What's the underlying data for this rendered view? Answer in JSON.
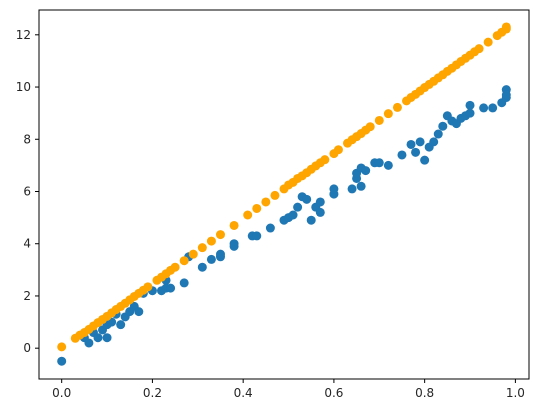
{
  "chart_data": {
    "type": "scatter",
    "title": "",
    "xlabel": "",
    "ylabel": "",
    "xlim": [
      -0.05,
      1.03
    ],
    "ylim": [
      -1.18,
      12.95
    ],
    "xticks": [
      0.0,
      0.2,
      0.4,
      0.6,
      0.8,
      1.0
    ],
    "xtick_labels": [
      "0.0",
      "0.2",
      "0.4",
      "0.6",
      "0.8",
      "1.0"
    ],
    "yticks": [
      0,
      2,
      4,
      6,
      8,
      10,
      12
    ],
    "ytick_labels": [
      "0",
      "2",
      "4",
      "6",
      "8",
      "10",
      "12"
    ],
    "grid": false,
    "legend": "none",
    "series": [
      {
        "color": "#1f77b4",
        "points": [
          [
            0.0,
            -0.5
          ],
          [
            0.05,
            0.4
          ],
          [
            0.06,
            0.2
          ],
          [
            0.07,
            0.6
          ],
          [
            0.08,
            0.4
          ],
          [
            0.09,
            0.7
          ],
          [
            0.1,
            0.4
          ],
          [
            0.1,
            0.9
          ],
          [
            0.11,
            1.0
          ],
          [
            0.12,
            1.3
          ],
          [
            0.13,
            0.9
          ],
          [
            0.14,
            1.2
          ],
          [
            0.15,
            1.4
          ],
          [
            0.16,
            1.6
          ],
          [
            0.17,
            1.4
          ],
          [
            0.18,
            2.1
          ],
          [
            0.2,
            2.2
          ],
          [
            0.22,
            2.2
          ],
          [
            0.23,
            2.3
          ],
          [
            0.24,
            2.3
          ],
          [
            0.23,
            2.6
          ],
          [
            0.27,
            2.5
          ],
          [
            0.28,
            3.5
          ],
          [
            0.31,
            3.1
          ],
          [
            0.33,
            3.4
          ],
          [
            0.35,
            3.5
          ],
          [
            0.35,
            3.6
          ],
          [
            0.38,
            4.0
          ],
          [
            0.38,
            3.9
          ],
          [
            0.42,
            4.3
          ],
          [
            0.43,
            4.3
          ],
          [
            0.46,
            4.6
          ],
          [
            0.49,
            4.9
          ],
          [
            0.5,
            5.0
          ],
          [
            0.51,
            5.1
          ],
          [
            0.52,
            5.4
          ],
          [
            0.53,
            5.8
          ],
          [
            0.54,
            5.7
          ],
          [
            0.55,
            4.9
          ],
          [
            0.56,
            5.4
          ],
          [
            0.57,
            5.6
          ],
          [
            0.57,
            5.2
          ],
          [
            0.6,
            5.9
          ],
          [
            0.6,
            6.1
          ],
          [
            0.64,
            6.1
          ],
          [
            0.65,
            6.5
          ],
          [
            0.65,
            6.7
          ],
          [
            0.66,
            6.9
          ],
          [
            0.66,
            6.2
          ],
          [
            0.67,
            6.8
          ],
          [
            0.69,
            7.1
          ],
          [
            0.7,
            7.1
          ],
          [
            0.72,
            7.0
          ],
          [
            0.75,
            7.4
          ],
          [
            0.77,
            7.8
          ],
          [
            0.78,
            7.5
          ],
          [
            0.79,
            7.9
          ],
          [
            0.8,
            7.2
          ],
          [
            0.81,
            7.7
          ],
          [
            0.82,
            7.9
          ],
          [
            0.83,
            8.2
          ],
          [
            0.84,
            8.5
          ],
          [
            0.85,
            8.9
          ],
          [
            0.86,
            8.7
          ],
          [
            0.87,
            8.6
          ],
          [
            0.88,
            8.8
          ],
          [
            0.89,
            8.9
          ],
          [
            0.9,
            9.0
          ],
          [
            0.9,
            9.3
          ],
          [
            0.93,
            9.2
          ],
          [
            0.95,
            9.2
          ],
          [
            0.97,
            9.4
          ],
          [
            0.98,
            9.6
          ],
          [
            0.98,
            9.9
          ],
          [
            0.98,
            9.7
          ]
        ]
      },
      {
        "color": "#ffa500",
        "points": [
          [
            0.0,
            0.05
          ],
          [
            0.03,
            0.38
          ],
          [
            0.04,
            0.5
          ],
          [
            0.05,
            0.6
          ],
          [
            0.06,
            0.72
          ],
          [
            0.07,
            0.85
          ],
          [
            0.08,
            0.98
          ],
          [
            0.09,
            1.1
          ],
          [
            0.1,
            1.22
          ],
          [
            0.11,
            1.35
          ],
          [
            0.12,
            1.48
          ],
          [
            0.13,
            1.6
          ],
          [
            0.14,
            1.72
          ],
          [
            0.15,
            1.85
          ],
          [
            0.16,
            1.98
          ],
          [
            0.17,
            2.1
          ],
          [
            0.18,
            2.22
          ],
          [
            0.19,
            2.35
          ],
          [
            0.21,
            2.6
          ],
          [
            0.22,
            2.72
          ],
          [
            0.23,
            2.85
          ],
          [
            0.24,
            2.98
          ],
          [
            0.25,
            3.1
          ],
          [
            0.27,
            3.35
          ],
          [
            0.29,
            3.6
          ],
          [
            0.31,
            3.85
          ],
          [
            0.33,
            4.1
          ],
          [
            0.35,
            4.35
          ],
          [
            0.38,
            4.7
          ],
          [
            0.41,
            5.1
          ],
          [
            0.43,
            5.35
          ],
          [
            0.45,
            5.6
          ],
          [
            0.47,
            5.85
          ],
          [
            0.49,
            6.1
          ],
          [
            0.5,
            6.25
          ],
          [
            0.51,
            6.35
          ],
          [
            0.52,
            6.5
          ],
          [
            0.53,
            6.6
          ],
          [
            0.54,
            6.72
          ],
          [
            0.55,
            6.85
          ],
          [
            0.56,
            6.98
          ],
          [
            0.57,
            7.1
          ],
          [
            0.58,
            7.22
          ],
          [
            0.6,
            7.45
          ],
          [
            0.61,
            7.6
          ],
          [
            0.63,
            7.85
          ],
          [
            0.64,
            7.98
          ],
          [
            0.65,
            8.1
          ],
          [
            0.66,
            8.22
          ],
          [
            0.67,
            8.35
          ],
          [
            0.68,
            8.48
          ],
          [
            0.7,
            8.72
          ],
          [
            0.72,
            8.98
          ],
          [
            0.74,
            9.22
          ],
          [
            0.76,
            9.47
          ],
          [
            0.77,
            9.6
          ],
          [
            0.78,
            9.72
          ],
          [
            0.79,
            9.85
          ],
          [
            0.8,
            9.98
          ],
          [
            0.81,
            10.1
          ],
          [
            0.82,
            10.22
          ],
          [
            0.83,
            10.35
          ],
          [
            0.84,
            10.47
          ],
          [
            0.85,
            10.6
          ],
          [
            0.86,
            10.72
          ],
          [
            0.87,
            10.85
          ],
          [
            0.88,
            10.98
          ],
          [
            0.89,
            11.1
          ],
          [
            0.9,
            11.22
          ],
          [
            0.91,
            11.35
          ],
          [
            0.92,
            11.47
          ],
          [
            0.94,
            11.72
          ],
          [
            0.96,
            11.97
          ],
          [
            0.97,
            12.1
          ],
          [
            0.98,
            12.22
          ],
          [
            0.98,
            12.3
          ]
        ]
      }
    ]
  }
}
